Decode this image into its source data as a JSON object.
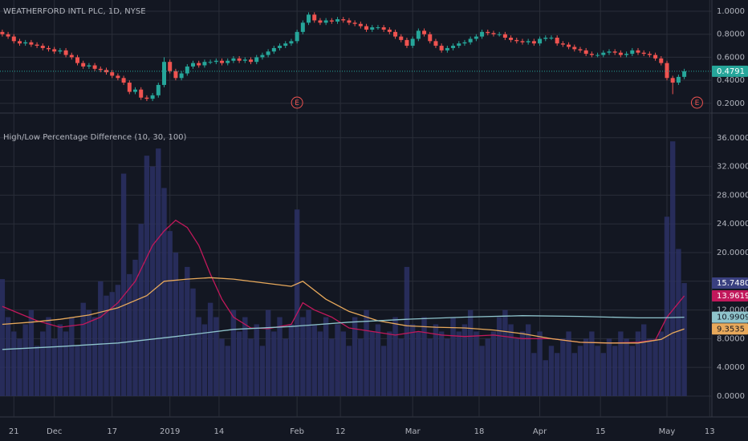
{
  "chart_data": [
    {
      "type": "candlestick",
      "title": "WEATHERFORD INTL PLC, 1D, NYSE",
      "up_color": "#26a69a",
      "down_color": "#ef5350",
      "open": [
        0.82,
        0.8,
        0.78,
        0.74,
        0.72,
        0.73,
        0.71,
        0.7,
        0.68,
        0.67,
        0.65,
        0.66,
        0.62,
        0.6,
        0.55,
        0.52,
        0.53,
        0.5,
        0.49,
        0.47,
        0.44,
        0.42,
        0.38,
        0.3,
        0.32,
        0.25,
        0.24,
        0.27,
        0.36,
        0.56,
        0.48,
        0.42,
        0.46,
        0.52,
        0.55,
        0.53,
        0.56,
        0.56,
        0.57,
        0.55,
        0.57,
        0.59,
        0.57,
        0.58,
        0.56,
        0.6,
        0.62,
        0.65,
        0.68,
        0.7,
        0.72,
        0.74,
        0.82,
        0.9,
        0.97,
        0.92,
        0.9,
        0.92,
        0.91,
        0.93,
        0.92,
        0.9,
        0.89,
        0.87,
        0.84,
        0.86,
        0.86,
        0.84,
        0.82,
        0.78,
        0.75,
        0.7,
        0.76,
        0.83,
        0.8,
        0.74,
        0.7,
        0.66,
        0.68,
        0.7,
        0.72,
        0.73,
        0.76,
        0.78,
        0.82,
        0.81,
        0.8,
        0.8,
        0.77,
        0.75,
        0.74,
        0.73,
        0.74,
        0.72,
        0.76,
        0.77,
        0.77,
        0.72,
        0.71,
        0.69,
        0.67,
        0.66,
        0.63,
        0.62,
        0.62,
        0.64,
        0.65,
        0.64,
        0.62,
        0.63,
        0.66,
        0.64,
        0.63,
        0.62,
        0.59,
        0.55,
        0.42,
        0.38,
        0.43
      ],
      "high": [
        0.84,
        0.82,
        0.8,
        0.76,
        0.75,
        0.75,
        0.73,
        0.72,
        0.7,
        0.69,
        0.68,
        0.68,
        0.64,
        0.62,
        0.57,
        0.55,
        0.55,
        0.52,
        0.51,
        0.49,
        0.46,
        0.44,
        0.4,
        0.34,
        0.34,
        0.27,
        0.29,
        0.38,
        0.6,
        0.58,
        0.5,
        0.48,
        0.54,
        0.57,
        0.57,
        0.58,
        0.58,
        0.59,
        0.59,
        0.59,
        0.61,
        0.61,
        0.6,
        0.6,
        0.62,
        0.64,
        0.67,
        0.7,
        0.72,
        0.74,
        0.76,
        0.84,
        0.92,
        0.99,
        0.99,
        0.94,
        0.94,
        0.94,
        0.95,
        0.95,
        0.94,
        0.92,
        0.91,
        0.89,
        0.88,
        0.88,
        0.88,
        0.86,
        0.84,
        0.8,
        0.77,
        0.78,
        0.85,
        0.85,
        0.82,
        0.76,
        0.72,
        0.7,
        0.72,
        0.74,
        0.75,
        0.78,
        0.8,
        0.84,
        0.84,
        0.83,
        0.82,
        0.82,
        0.79,
        0.77,
        0.76,
        0.76,
        0.76,
        0.78,
        0.79,
        0.79,
        0.79,
        0.74,
        0.73,
        0.71,
        0.69,
        0.68,
        0.65,
        0.64,
        0.66,
        0.67,
        0.67,
        0.66,
        0.65,
        0.68,
        0.68,
        0.66,
        0.65,
        0.64,
        0.61,
        0.57,
        0.44,
        0.45,
        0.5
      ],
      "low": [
        0.78,
        0.76,
        0.72,
        0.7,
        0.7,
        0.69,
        0.68,
        0.66,
        0.65,
        0.63,
        0.63,
        0.6,
        0.58,
        0.53,
        0.5,
        0.5,
        0.48,
        0.47,
        0.45,
        0.42,
        0.4,
        0.36,
        0.28,
        0.28,
        0.23,
        0.22,
        0.22,
        0.25,
        0.34,
        0.46,
        0.4,
        0.4,
        0.44,
        0.5,
        0.51,
        0.51,
        0.54,
        0.54,
        0.53,
        0.53,
        0.55,
        0.55,
        0.55,
        0.54,
        0.54,
        0.58,
        0.6,
        0.63,
        0.66,
        0.68,
        0.7,
        0.72,
        0.8,
        0.88,
        0.9,
        0.88,
        0.88,
        0.89,
        0.89,
        0.9,
        0.88,
        0.87,
        0.85,
        0.82,
        0.82,
        0.84,
        0.82,
        0.8,
        0.76,
        0.73,
        0.68,
        0.68,
        0.74,
        0.78,
        0.72,
        0.68,
        0.64,
        0.64,
        0.66,
        0.68,
        0.7,
        0.71,
        0.74,
        0.76,
        0.79,
        0.78,
        0.78,
        0.75,
        0.73,
        0.72,
        0.71,
        0.71,
        0.7,
        0.7,
        0.74,
        0.75,
        0.7,
        0.69,
        0.67,
        0.65,
        0.64,
        0.61,
        0.6,
        0.6,
        0.6,
        0.62,
        0.62,
        0.6,
        0.6,
        0.61,
        0.62,
        0.61,
        0.6,
        0.57,
        0.53,
        0.4,
        0.28,
        0.36,
        0.41
      ],
      "close": [
        0.8,
        0.78,
        0.74,
        0.72,
        0.73,
        0.71,
        0.7,
        0.68,
        0.67,
        0.65,
        0.66,
        0.62,
        0.6,
        0.55,
        0.52,
        0.53,
        0.5,
        0.49,
        0.47,
        0.44,
        0.42,
        0.38,
        0.3,
        0.32,
        0.25,
        0.24,
        0.27,
        0.36,
        0.56,
        0.48,
        0.42,
        0.46,
        0.52,
        0.55,
        0.53,
        0.56,
        0.56,
        0.57,
        0.55,
        0.57,
        0.59,
        0.57,
        0.58,
        0.56,
        0.6,
        0.62,
        0.65,
        0.68,
        0.7,
        0.72,
        0.74,
        0.82,
        0.9,
        0.97,
        0.92,
        0.9,
        0.92,
        0.91,
        0.93,
        0.92,
        0.9,
        0.89,
        0.87,
        0.84,
        0.86,
        0.86,
        0.84,
        0.82,
        0.78,
        0.75,
        0.7,
        0.76,
        0.83,
        0.8,
        0.74,
        0.7,
        0.66,
        0.68,
        0.7,
        0.72,
        0.73,
        0.76,
        0.78,
        0.82,
        0.81,
        0.8,
        0.8,
        0.77,
        0.75,
        0.74,
        0.73,
        0.74,
        0.72,
        0.76,
        0.77,
        0.77,
        0.72,
        0.71,
        0.69,
        0.67,
        0.66,
        0.63,
        0.62,
        0.62,
        0.64,
        0.65,
        0.64,
        0.62,
        0.63,
        0.66,
        0.64,
        0.63,
        0.62,
        0.59,
        0.55,
        0.42,
        0.38,
        0.43,
        0.4791
      ],
      "last_label": "0.4791",
      "last_color": "#26a69a",
      "annotations": [
        {
          "x": 51,
          "label": "E"
        },
        {
          "x": 120.2,
          "label": "E"
        }
      ],
      "xlim": [
        -0.4,
        122.5
      ],
      "ylim": [
        0.123,
        1.097
      ],
      "yticks": [
        {
          "value": 0.2,
          "label": "0.2000"
        },
        {
          "value": 0.4,
          "label": "0.4000"
        },
        {
          "value": 0.6,
          "label": "0.6000"
        },
        {
          "value": 0.8,
          "label": "0.8000"
        },
        {
          "value": 1,
          "label": "1.0000"
        }
      ],
      "grid": true
    },
    {
      "type": "combo",
      "title": "High/Low Percentage Difference (10, 30, 100)",
      "color": "#2b3064",
      "values": [
        16.3,
        11,
        9,
        8,
        10,
        12,
        7,
        9,
        11,
        8,
        10,
        9,
        11,
        7,
        13,
        12,
        11,
        16,
        14,
        14.5,
        15.5,
        31,
        17,
        19,
        24,
        33.5,
        32,
        34.5,
        29,
        23,
        20,
        16,
        18,
        15,
        11,
        10,
        13,
        11,
        8,
        7,
        12,
        9,
        11,
        8,
        10,
        7,
        12,
        9,
        11,
        8,
        10,
        26,
        11,
        12,
        10,
        9,
        11,
        8,
        10,
        9,
        7,
        11,
        8,
        12,
        9,
        10,
        7,
        9,
        11,
        8,
        18,
        10,
        9,
        11,
        8,
        10,
        9,
        8,
        11,
        9,
        10,
        12,
        9,
        7,
        8,
        9,
        11,
        12,
        10,
        8,
        9,
        10,
        6,
        9,
        5,
        7,
        6,
        8,
        9,
        6,
        7,
        8,
        9,
        7,
        6,
        8,
        7,
        9,
        8,
        7,
        9,
        10,
        8,
        8,
        9,
        25,
        35.5,
        20.5,
        15.748
      ],
      "last_label": "15.7480",
      "last_color": "#3a4080",
      "series": [
        {
          "color": "#c2185b",
          "x": [
            0,
            3,
            6,
            10,
            14,
            17,
            20,
            23,
            26,
            28,
            30,
            32,
            34,
            36,
            38,
            40,
            43,
            46,
            50,
            52,
            54,
            57,
            60,
            64,
            68,
            72,
            76,
            80,
            85,
            90,
            95,
            100,
            105,
            110,
            113,
            115,
            118
          ],
          "values": [
            12.5,
            11.5,
            10.5,
            9.6,
            10,
            11,
            13,
            16,
            21,
            23,
            24.5,
            23.5,
            21,
            17,
            13.5,
            11,
            9.5,
            9.4,
            10,
            13,
            12,
            11,
            9.5,
            9,
            8.5,
            9,
            8.5,
            8.3,
            8.5,
            8,
            8,
            7.5,
            7.4,
            7.5,
            7.8,
            11,
            13.9619
          ],
          "last_label": "13.9619"
        },
        {
          "color": "#e8a95b",
          "x": [
            0,
            5,
            10,
            15,
            20,
            25,
            28,
            32,
            36,
            40,
            45,
            50,
            52,
            56,
            60,
            65,
            70,
            75,
            80,
            85,
            90,
            95,
            100,
            105,
            110,
            114,
            116,
            118
          ],
          "values": [
            10,
            10.3,
            10.7,
            11.3,
            12.3,
            14,
            16,
            16.3,
            16.5,
            16.3,
            15.8,
            15.3,
            16,
            13.5,
            11.8,
            10.5,
            9.8,
            9.6,
            9.5,
            9.2,
            8.7,
            8,
            7.5,
            7.4,
            7.4,
            7.9,
            8.8,
            9.3535
          ],
          "last_label": "9.3535"
        },
        {
          "color": "#8fc4cc",
          "x": [
            0,
            10,
            20,
            30,
            40,
            50,
            60,
            70,
            80,
            90,
            100,
            110,
            114,
            118
          ],
          "values": [
            6.5,
            6.9,
            7.4,
            8.3,
            9.3,
            9.7,
            10.3,
            10.7,
            11.0,
            11.2,
            11.1,
            10.9,
            10.9,
            10.9909
          ],
          "last_label": "10.9909"
        }
      ],
      "xlim": [
        -0.4,
        122.5
      ],
      "ylim": [
        -1.79,
        39.33
      ],
      "yticks": [
        {
          "value": 0,
          "label": "0.0000"
        },
        {
          "value": 4,
          "label": "4.0000"
        },
        {
          "value": 8,
          "label": "8.0000"
        },
        {
          "value": 12,
          "label": "12.0000"
        },
        {
          "value": 16,
          "label": "16.0000"
        },
        {
          "value": 20,
          "label": "20.0000"
        },
        {
          "value": 24,
          "label": "24.0000"
        },
        {
          "value": 28,
          "label": "28.0000"
        },
        {
          "value": 32,
          "label": "32.0000"
        },
        {
          "value": 36,
          "label": "36.0000"
        }
      ],
      "xticks": [
        {
          "value": 2,
          "label": "21"
        },
        {
          "value": 9,
          "label": "Dec"
        },
        {
          "value": 19,
          "label": "17"
        },
        {
          "value": 29,
          "label": "2019"
        },
        {
          "value": 37.5,
          "label": "14"
        },
        {
          "value": 51,
          "label": "Feb"
        },
        {
          "value": 58.5,
          "label": "12"
        },
        {
          "value": 71,
          "label": "Mar"
        },
        {
          "value": 82.5,
          "label": "18"
        },
        {
          "value": 93,
          "label": "Apr"
        },
        {
          "value": 103.5,
          "label": "15"
        },
        {
          "value": 115,
          "label": "May"
        },
        {
          "value": 122.4,
          "label": "13"
        }
      ],
      "grid": true
    }
  ]
}
